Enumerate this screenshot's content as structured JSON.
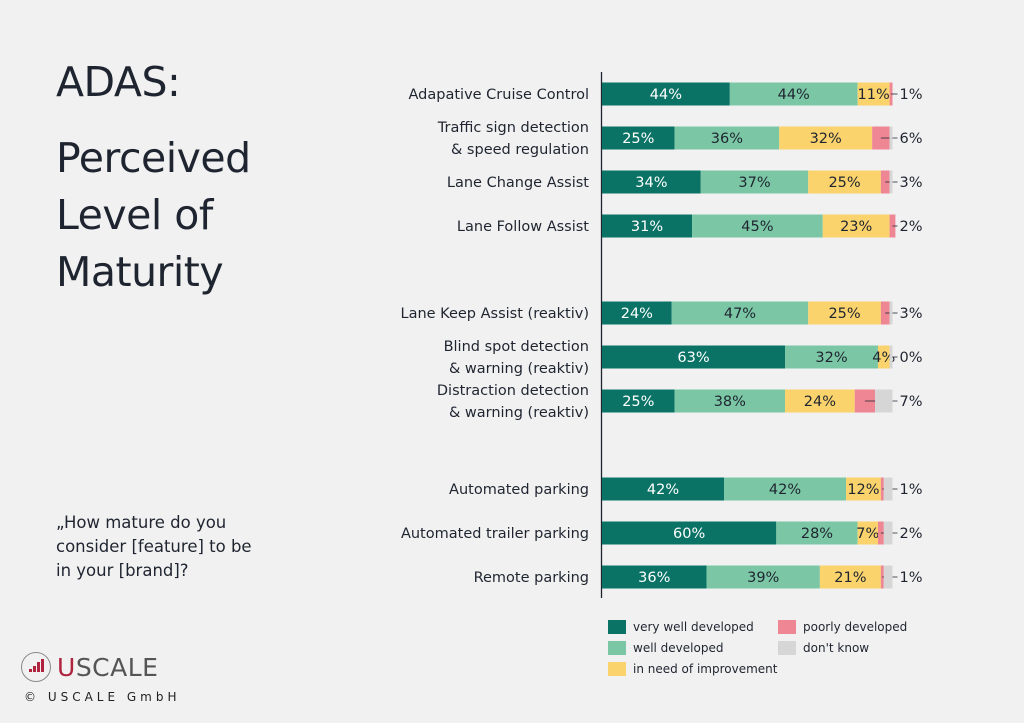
{
  "header": {
    "title_line1": "ADAS:",
    "title_line2": "Perceived Level of Maturity"
  },
  "question": "„How mature do you consider [feature] to be in your [brand]?",
  "footer": {
    "logo_text_accent": "U",
    "logo_text_rest": "SCALE",
    "copyright": "© USCALE GmbH"
  },
  "colors": {
    "very_well_developed": "#0b7366",
    "well_developed": "#7bc7a5",
    "in_need_of_improvement": "#fbd36c",
    "poorly_developed": "#ee8694",
    "dont_know": "#d6d6d6",
    "brand_red": "#b0233f"
  },
  "chart_data": {
    "type": "bar",
    "orientation": "horizontal",
    "stacked": true,
    "title": "ADAS: Perceived Level of Maturity",
    "xlabel": "",
    "ylabel": "",
    "xlim": [
      0,
      100
    ],
    "unit": "%",
    "grid": false,
    "legend_position": "bottom-right",
    "groups": [
      [
        "Adapative Cruise Control",
        "Traffic sign detection & speed regulation",
        "Lane Change Assist",
        "Lane Follow Assist"
      ],
      [
        "Lane Keep Assist (reaktiv)",
        "Blind spot detection & warning (reaktiv)",
        "Distraction detection & warning (reaktiv)"
      ],
      [
        "Automated parking",
        "Automated trailer parking",
        "Remote parking"
      ]
    ],
    "categories": [
      [
        "Adapative Cruise Control"
      ],
      [
        "Traffic sign detection",
        "& speed regulation"
      ],
      [
        "Lane Change Assist"
      ],
      [
        "Lane Follow Assist"
      ],
      [
        "Lane Keep Assist (reaktiv)"
      ],
      [
        "Blind spot detection",
        "& warning (reaktiv)"
      ],
      [
        "Distraction detection",
        "& warning (reaktiv)"
      ],
      [
        "Automated parking"
      ],
      [
        "Automated trailer parking"
      ],
      [
        "Remote parking"
      ]
    ],
    "series": [
      {
        "name": "very well developed",
        "key": "very_well_developed",
        "values": [
          44,
          25,
          34,
          31,
          24,
          63,
          25,
          42,
          60,
          36
        ],
        "label_color": "#ffffff"
      },
      {
        "name": "well developed",
        "key": "well_developed",
        "values": [
          44,
          36,
          37,
          45,
          47,
          32,
          38,
          42,
          28,
          39
        ],
        "label_color": "#1f2530"
      },
      {
        "name": "in need of improvement",
        "key": "in_need_of_improvement",
        "values": [
          11,
          32,
          25,
          23,
          25,
          4,
          24,
          12,
          7,
          21
        ],
        "label_color": "#1f2530"
      },
      {
        "name": "poorly developed",
        "key": "poorly_developed",
        "values": [
          1,
          6,
          3,
          2,
          3,
          0,
          7,
          1,
          2,
          1
        ],
        "label_outside": true
      },
      {
        "name": "don't know",
        "key": "dont_know",
        "values": [
          0,
          1,
          1,
          0,
          1,
          1,
          6,
          3,
          3,
          3
        ],
        "unlabeled": true
      }
    ],
    "legend": [
      {
        "name": "very well developed",
        "key": "very_well_developed"
      },
      {
        "name": "well developed",
        "key": "well_developed"
      },
      {
        "name": "in need of improvement",
        "key": "in_need_of_improvement"
      },
      {
        "name": "poorly developed",
        "key": "poorly_developed"
      },
      {
        "name": "don't know",
        "key": "dont_know"
      }
    ]
  }
}
